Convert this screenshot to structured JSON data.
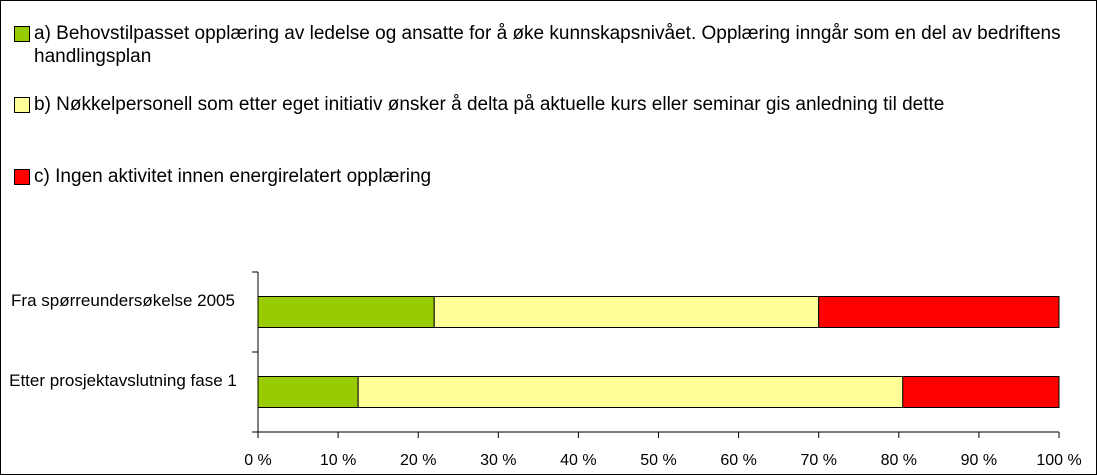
{
  "chart_data": {
    "type": "stacked-bar-horizontal",
    "categories": [
      "Fra spørreundersøkelse 2005",
      "Etter prosjektavslutning fase 1"
    ],
    "series": [
      {
        "name": "a) Behovstilpasset opplæring av ledelse og ansatte for å øke kunnskapsnivået. Opplæring inngår som en del av bedriftens handlingsplan",
        "color": "#99cc00",
        "values": [
          22,
          12.5
        ]
      },
      {
        "name": "b) Nøkkelpersonell som etter eget initiativ ønsker å delta på aktuelle kurs eller seminar gis anledning til dette",
        "color": "#ffff99",
        "values": [
          48,
          68
        ]
      },
      {
        "name": "c) Ingen aktivitet innen energirelatert opplæring",
        "color": "#ff0000",
        "values": [
          30,
          19.5
        ]
      }
    ],
    "xlim": [
      0,
      100
    ],
    "xticks": [
      {
        "value": 0,
        "label": "0 %"
      },
      {
        "value": 10,
        "label": "10 %"
      },
      {
        "value": 20,
        "label": "20 %"
      },
      {
        "value": 30,
        "label": "30 %"
      },
      {
        "value": 40,
        "label": "40 %"
      },
      {
        "value": 50,
        "label": "50 %"
      },
      {
        "value": 60,
        "label": "60 %"
      },
      {
        "value": 70,
        "label": "70 %"
      },
      {
        "value": 80,
        "label": "80 %"
      },
      {
        "value": 90,
        "label": "90 %"
      },
      {
        "value": 100,
        "label": "100 %"
      }
    ],
    "grid": false,
    "legend": "top"
  }
}
